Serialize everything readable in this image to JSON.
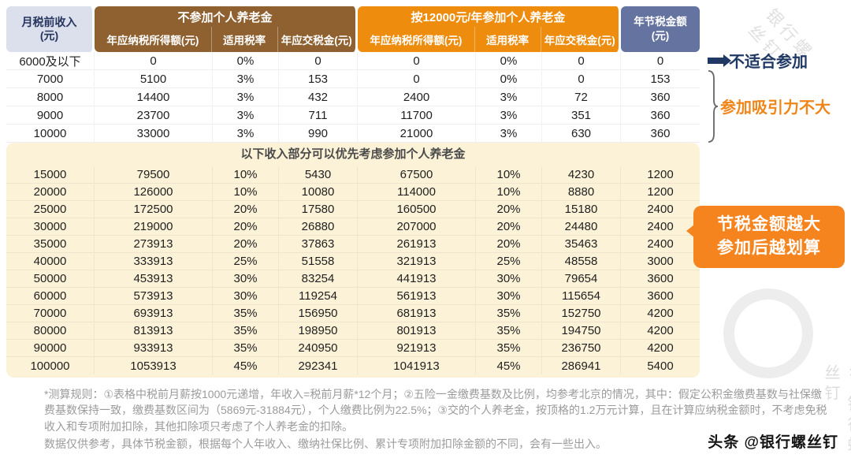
{
  "header": {
    "income_line1": "月税前收入",
    "income_line2": "(元)",
    "group_no": "不参加个人养老金",
    "group_yes": "按12000元/年参加个人养老金",
    "saving_line1": "年节税金额",
    "saving_line2": "(元)",
    "sub": [
      "年应纳税所得额(元)",
      "适用税率",
      "年应交税金(元)"
    ]
  },
  "chart_data": {
    "type": "table",
    "columns": [
      "月税前收入(元)",
      "不参加-年应纳税所得额(元)",
      "不参加-适用税率",
      "不参加-年应交税金(元)",
      "参加-年应纳税所得额(元)",
      "参加-适用税率",
      "参加-年应交税金(元)",
      "年节税金额(元)"
    ],
    "upper_rows": [
      [
        "6000及以下",
        "0",
        "0%",
        "0",
        "0",
        "0%",
        "0",
        "0"
      ],
      [
        "7000",
        "5100",
        "3%",
        "153",
        "0",
        "0%",
        "0",
        "153"
      ],
      [
        "8000",
        "14400",
        "3%",
        "432",
        "2400",
        "3%",
        "72",
        "360"
      ],
      [
        "9000",
        "23700",
        "3%",
        "711",
        "11700",
        "3%",
        "351",
        "360"
      ],
      [
        "10000",
        "33000",
        "3%",
        "990",
        "21000",
        "3%",
        "630",
        "360"
      ]
    ],
    "banner": "以下收入部分可以优先考虑参加个人养老金",
    "lower_rows": [
      [
        "15000",
        "79500",
        "10%",
        "5430",
        "67500",
        "10%",
        "4230",
        "1200"
      ],
      [
        "20000",
        "126000",
        "10%",
        "10080",
        "114000",
        "10%",
        "8880",
        "1200"
      ],
      [
        "25000",
        "172500",
        "20%",
        "17580",
        "160500",
        "20%",
        "15180",
        "2400"
      ],
      [
        "30000",
        "219000",
        "20%",
        "26880",
        "207000",
        "20%",
        "24480",
        "2400"
      ],
      [
        "35000",
        "273913",
        "20%",
        "37863",
        "261913",
        "20%",
        "35463",
        "2400"
      ],
      [
        "40000",
        "333913",
        "25%",
        "51558",
        "321913",
        "25%",
        "48558",
        "3000"
      ],
      [
        "50000",
        "453913",
        "30%",
        "83254",
        "441913",
        "30%",
        "79654",
        "3600"
      ],
      [
        "60000",
        "573913",
        "30%",
        "119254",
        "561913",
        "30%",
        "115654",
        "3600"
      ],
      [
        "70000",
        "693913",
        "35%",
        "156950",
        "681913",
        "35%",
        "152750",
        "4200"
      ],
      [
        "80000",
        "813913",
        "35%",
        "198950",
        "801913",
        "35%",
        "194750",
        "4200"
      ],
      [
        "90000",
        "933913",
        "35%",
        "240950",
        "921913",
        "35%",
        "236750",
        "4200"
      ],
      [
        "100000",
        "1053913",
        "45%",
        "292341",
        "1041913",
        "45%",
        "286941",
        "5400"
      ]
    ]
  },
  "annotations": {
    "not_suitable": "不适合参加",
    "low_attraction": "参加吸引力不大",
    "badge_line1": "节税金额越大",
    "badge_line2": "参加后越划算"
  },
  "footnote": {
    "line1": "*测算规则：①表格中税前月薪按1000元递增，年收入=税前月薪*12个月；②五险一金缴费基数及比例，均参考北京的情况，其中：假定公积金缴费基数与社保缴费基数保持一致，缴费基数区间为（5869元-31884元），个人缴费比例为22.5%；③交的个人养老金，按顶格的1.2万元计算，且在计算应纳税金额时，不考虑免税收入和专项附加扣除，其他扣除项只考虑了个人养老金的扣除。",
    "line2": "数据仅供参考，具体节税金额，根据每个人年收入、缴纳社保比例、累计专项附加扣除金额的不同，会有一些出入。"
  },
  "watermark": {
    "diag": "银行螺丝钉",
    "vert": "× 银行螺丝钉"
  },
  "credit": "头条 @银行螺丝钉",
  "colors": {
    "brown_header": "#8f6130",
    "orange_header": "#ee8c0e",
    "slate_header": "#64739f",
    "income_header_bg": "#dce0ec",
    "cream_section": "#fbf2d7",
    "badge_orange": "#f5831e",
    "annotation_navy": "#1f3864",
    "annotation_orange": "#f08519"
  }
}
